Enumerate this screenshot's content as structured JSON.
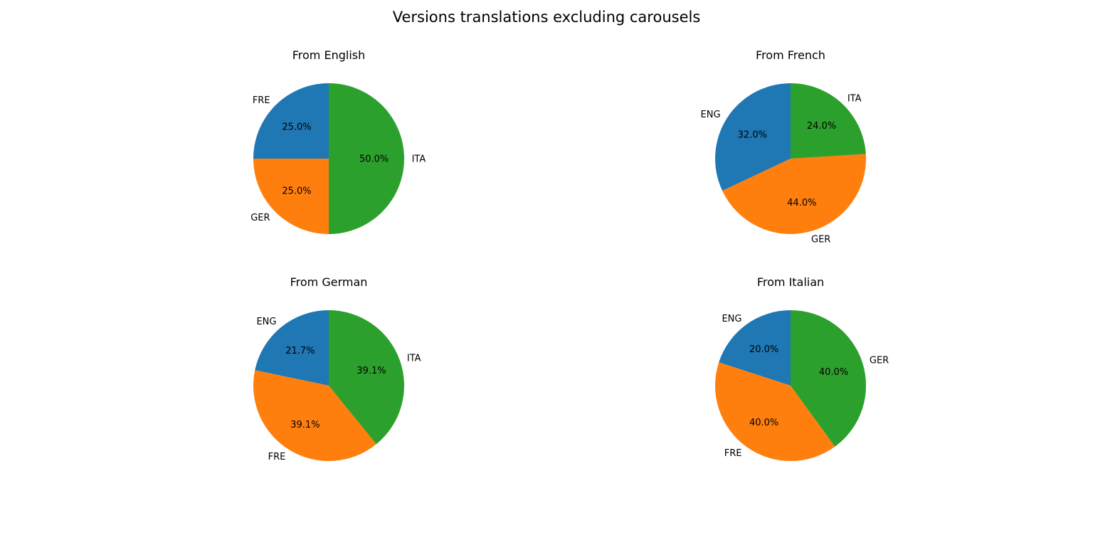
{
  "title": "Versions translations excluding carousels",
  "colors": [
    "#1f77b4",
    "#ff7f0e",
    "#2ca02c"
  ],
  "chart_data": [
    {
      "type": "pie",
      "title": "From English",
      "labels": [
        "FRE",
        "GER",
        "ITA"
      ],
      "values": [
        25.0,
        25.0,
        50.0
      ],
      "pct_labels": [
        "25.0%",
        "25.0%",
        "50.0%"
      ],
      "start_angle_deg": 90,
      "direction": "counterclockwise"
    },
    {
      "type": "pie",
      "title": "From French",
      "labels": [
        "ENG",
        "GER",
        "ITA"
      ],
      "values": [
        32.0,
        44.0,
        24.0
      ],
      "pct_labels": [
        "32.0%",
        "44.0%",
        "24.0%"
      ],
      "start_angle_deg": 90,
      "direction": "counterclockwise"
    },
    {
      "type": "pie",
      "title": "From German",
      "labels": [
        "ENG",
        "FRE",
        "ITA"
      ],
      "values": [
        21.7,
        39.1,
        39.1
      ],
      "pct_labels": [
        "21.7%",
        "39.1%",
        "39.1%"
      ],
      "start_angle_deg": 90,
      "direction": "counterclockwise"
    },
    {
      "type": "pie",
      "title": "From Italian",
      "labels": [
        "ENG",
        "FRE",
        "GER"
      ],
      "values": [
        20.0,
        40.0,
        40.0
      ],
      "pct_labels": [
        "20.0%",
        "40.0%",
        "40.0%"
      ],
      "start_angle_deg": 90,
      "direction": "counterclockwise"
    }
  ]
}
